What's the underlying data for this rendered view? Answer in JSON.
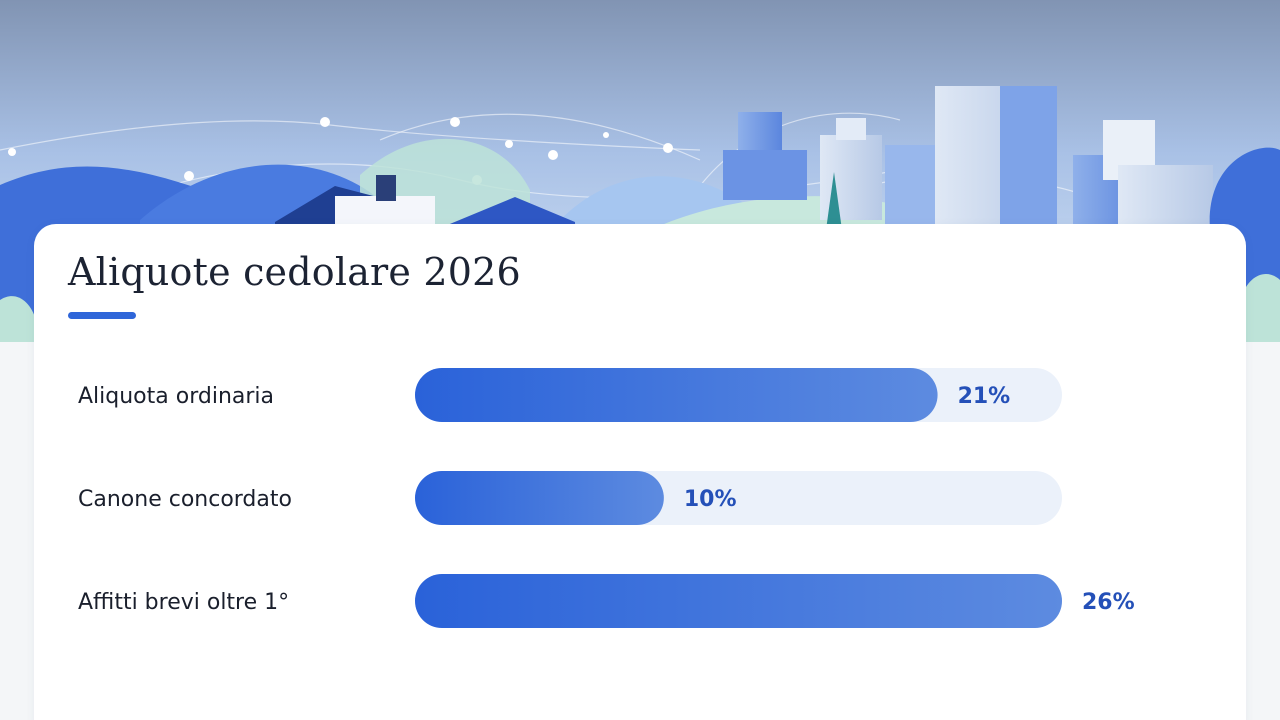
{
  "title": "Aliquote cedolare 2026",
  "colors": {
    "accent": "#2f66d9",
    "bar_start": "#2a62d9",
    "bar_end": "#5d8be0",
    "track": "#ebf1fa",
    "value_text": "#2450b8",
    "label_text": "#1a1f2c"
  },
  "chart_data": {
    "type": "bar",
    "orientation": "horizontal",
    "categories": [
      "Aliquota ordinaria",
      "Canone concordato",
      "Affitti brevi oltre 1°"
    ],
    "values": [
      21,
      10,
      26
    ],
    "value_labels": [
      "21%",
      "10%",
      "26%"
    ],
    "unit": "%",
    "xlim": [
      0,
      26
    ],
    "grid": false,
    "legend": "none"
  }
}
